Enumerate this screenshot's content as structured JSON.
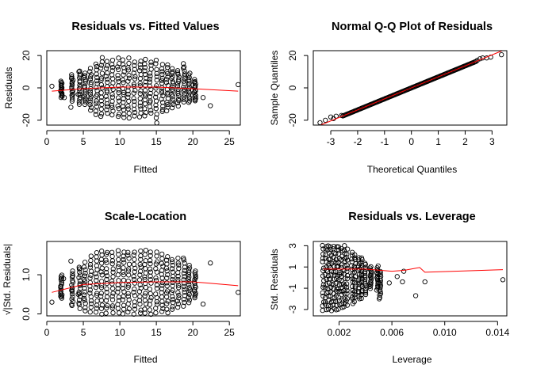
{
  "chart_data": [
    {
      "id": "resfit",
      "type": "scatter",
      "title": "Residuals vs. Fitted Values",
      "xlabel": "Fitted",
      "ylabel": "Residuals",
      "xlim": [
        0,
        26.5
      ],
      "ylim": [
        -23,
        23
      ],
      "xticks": [
        0,
        5,
        10,
        15,
        20,
        25
      ],
      "yticks": [
        -20,
        0,
        20
      ],
      "points": [
        [
          0.7,
          1
        ],
        [
          1.9,
          -2
        ],
        [
          2.4,
          -6
        ],
        [
          3.3,
          -12
        ],
        [
          3.4,
          6
        ],
        [
          4.3,
          -4
        ],
        [
          4.4,
          10
        ],
        [
          21.4,
          -6
        ],
        [
          22.4,
          -11
        ],
        [
          26.2,
          2
        ]
      ],
      "columns": [
        {
          "x": 2.0,
          "ymin": -6,
          "ymax": 4
        },
        {
          "x": 3.5,
          "ymin": -8,
          "ymax": 8
        },
        {
          "x": 4.5,
          "ymin": -10,
          "ymax": 10
        },
        {
          "x": 5.2,
          "ymin": -10,
          "ymax": 9
        },
        {
          "x": 6.0,
          "ymin": -14,
          "ymax": 12
        },
        {
          "x": 6.8,
          "ymin": -16,
          "ymax": 15
        },
        {
          "x": 7.5,
          "ymin": -18,
          "ymax": 19
        },
        {
          "x": 8.2,
          "ymin": -16,
          "ymax": 16
        },
        {
          "x": 9.0,
          "ymin": -17,
          "ymax": 17
        },
        {
          "x": 9.8,
          "ymin": -18,
          "ymax": 18
        },
        {
          "x": 10.5,
          "ymin": -19,
          "ymax": 17
        },
        {
          "x": 11.2,
          "ymin": -18,
          "ymax": 18
        },
        {
          "x": 12.0,
          "ymin": -17,
          "ymax": 16
        },
        {
          "x": 12.8,
          "ymin": -18,
          "ymax": 17
        },
        {
          "x": 13.5,
          "ymin": -17,
          "ymax": 17
        },
        {
          "x": 14.2,
          "ymin": -16,
          "ymax": 16
        },
        {
          "x": 15.0,
          "ymin": -21,
          "ymax": 17
        },
        {
          "x": 15.8,
          "ymin": -15,
          "ymax": 14
        },
        {
          "x": 16.5,
          "ymin": -14,
          "ymax": 14
        },
        {
          "x": 17.2,
          "ymin": -12,
          "ymax": 12
        },
        {
          "x": 18.0,
          "ymin": -11,
          "ymax": 11
        },
        {
          "x": 18.8,
          "ymin": -9,
          "ymax": 15
        },
        {
          "x": 19.5,
          "ymin": -9,
          "ymax": 9
        },
        {
          "x": 20.3,
          "ymin": -8,
          "ymax": 5
        }
      ],
      "smooth": [
        [
          0.7,
          -2
        ],
        [
          5,
          -0.5
        ],
        [
          10,
          0.5
        ],
        [
          15,
          0.5
        ],
        [
          20,
          -0.5
        ],
        [
          26.2,
          -2
        ]
      ]
    },
    {
      "id": "qq",
      "type": "scatter",
      "title": "Normal Q-Q Plot of Residuals",
      "xlabel": "Theoretical Quantiles",
      "ylabel": "Sample Quantiles",
      "xlim": [
        -3.65,
        3.55
      ],
      "ylim": [
        -23,
        23
      ],
      "xticks": [
        -3,
        -2,
        -1,
        0,
        1,
        2,
        3
      ],
      "yticks": [
        -20,
        0,
        20
      ],
      "points": [
        [
          -3.4,
          -21.5
        ],
        [
          -3.2,
          -20
        ],
        [
          -3.0,
          -18
        ],
        [
          -2.9,
          -19
        ],
        [
          -2.8,
          -17.5
        ],
        [
          -2.6,
          -17
        ],
        [
          2.45,
          17
        ],
        [
          2.55,
          18
        ],
        [
          2.65,
          18.5
        ],
        [
          2.8,
          18.5
        ],
        [
          2.95,
          19
        ],
        [
          3.35,
          20.5
        ]
      ],
      "band": {
        "from": -2.55,
        "to": 2.4,
        "slope": 6.8
      },
      "line": {
        "slope": 6.8,
        "intercept": 0
      }
    },
    {
      "id": "scaleloc",
      "type": "scatter",
      "title": "Scale-Location",
      "xlabel": "Fitted",
      "ylabel": "√|Std. Residuals|",
      "xlim": [
        0,
        26.5
      ],
      "ylim": [
        -0.05,
        1.85
      ],
      "xticks": [
        0,
        5,
        10,
        15,
        20,
        25
      ],
      "yticks": [
        0.0,
        1.0
      ],
      "yticklabels": [
        "0.0",
        "1.0"
      ],
      "points": [
        [
          0.7,
          0.3
        ],
        [
          1.9,
          0.45
        ],
        [
          2.3,
          0.9
        ],
        [
          3.3,
          1.35
        ],
        [
          3.4,
          0.6
        ],
        [
          4.3,
          0.5
        ],
        [
          4.5,
          1.15
        ],
        [
          21.4,
          0.25
        ],
        [
          22.4,
          1.3
        ],
        [
          26.2,
          0.55
        ]
      ],
      "columns": [
        {
          "x": 2.0,
          "ymin": 0.4,
          "ymax": 1.0
        },
        {
          "x": 3.5,
          "ymin": 0.2,
          "ymax": 1.1
        },
        {
          "x": 4.5,
          "ymin": 0.15,
          "ymax": 1.2
        },
        {
          "x": 5.2,
          "ymin": 0.1,
          "ymax": 1.3
        },
        {
          "x": 6.0,
          "ymin": 0.05,
          "ymax": 1.45
        },
        {
          "x": 6.8,
          "ymin": 0.05,
          "ymax": 1.55
        },
        {
          "x": 7.5,
          "ymin": 0.02,
          "ymax": 1.6
        },
        {
          "x": 8.2,
          "ymin": 0.02,
          "ymax": 1.6
        },
        {
          "x": 9.0,
          "ymin": 0.02,
          "ymax": 1.6
        },
        {
          "x": 9.8,
          "ymin": 0.02,
          "ymax": 1.6
        },
        {
          "x": 10.5,
          "ymin": 0.02,
          "ymax": 1.6
        },
        {
          "x": 11.2,
          "ymin": 0.02,
          "ymax": 1.6
        },
        {
          "x": 12.0,
          "ymin": 0.02,
          "ymax": 1.6
        },
        {
          "x": 12.8,
          "ymin": 0.02,
          "ymax": 1.6
        },
        {
          "x": 13.5,
          "ymin": 0.02,
          "ymax": 1.6
        },
        {
          "x": 14.2,
          "ymin": 0.02,
          "ymax": 1.6
        },
        {
          "x": 15.0,
          "ymin": 0.02,
          "ymax": 1.55
        },
        {
          "x": 15.8,
          "ymin": 0.05,
          "ymax": 1.5
        },
        {
          "x": 16.5,
          "ymin": 0.05,
          "ymax": 1.45
        },
        {
          "x": 17.2,
          "ymin": 0.1,
          "ymax": 1.4
        },
        {
          "x": 18.0,
          "ymin": 0.15,
          "ymax": 1.4
        },
        {
          "x": 18.8,
          "ymin": 0.2,
          "ymax": 1.45
        },
        {
          "x": 19.5,
          "ymin": 0.3,
          "ymax": 1.25
        },
        {
          "x": 20.3,
          "ymin": 0.4,
          "ymax": 1.1
        }
      ],
      "smooth": [
        [
          0.7,
          0.55
        ],
        [
          5,
          0.75
        ],
        [
          10,
          0.8
        ],
        [
          15,
          0.82
        ],
        [
          20,
          0.82
        ],
        [
          26.2,
          0.72
        ]
      ]
    },
    {
      "id": "resleverage",
      "type": "scatter",
      "title": "Residuals vs. Leverage",
      "xlabel": "Leverage",
      "ylabel": "Std. Residuals",
      "xlim": [
        5e-05,
        0.0147
      ],
      "ylim": [
        -3.6,
        3.4
      ],
      "xticks": [
        0.002,
        0.006,
        0.01,
        0.014
      ],
      "xticklabels": [
        "0.002",
        "0.006",
        "0.010",
        "0.014"
      ],
      "yticks": [
        -3,
        -1,
        1,
        3
      ],
      "yticklabels": [
        "-3",
        "-1",
        "1",
        "3"
      ],
      "points": [
        [
          0.0058,
          -0.5
        ],
        [
          0.0064,
          0.1
        ],
        [
          0.0068,
          -0.4
        ],
        [
          0.0069,
          0.6
        ],
        [
          0.0078,
          -1.7
        ],
        [
          0.0085,
          -0.4
        ],
        [
          0.0144,
          -0.2
        ]
      ],
      "columns": [
        {
          "x": 0.0008,
          "ymin": -3.0,
          "ymax": 3.0
        },
        {
          "x": 0.001,
          "ymin": -3.0,
          "ymax": 3.0
        },
        {
          "x": 0.0012,
          "ymin": -3.0,
          "ymax": 3.0
        },
        {
          "x": 0.0014,
          "ymin": -3.0,
          "ymax": 3.0
        },
        {
          "x": 0.0016,
          "ymin": -3.0,
          "ymax": 3.0
        },
        {
          "x": 0.0018,
          "ymin": -3.0,
          "ymax": 3.0
        },
        {
          "x": 0.002,
          "ymin": -3.0,
          "ymax": 3.0
        },
        {
          "x": 0.0022,
          "ymin": -2.8,
          "ymax": 2.8
        },
        {
          "x": 0.0024,
          "ymin": -2.8,
          "ymax": 3.0
        },
        {
          "x": 0.0026,
          "ymin": -2.6,
          "ymax": 2.6
        },
        {
          "x": 0.003,
          "ymin": -2.4,
          "ymax": 2.4
        },
        {
          "x": 0.0032,
          "ymin": -2.2,
          "ymax": 2.2
        },
        {
          "x": 0.0035,
          "ymin": -2.0,
          "ymax": 1.9
        },
        {
          "x": 0.0037,
          "ymin": -1.9,
          "ymax": 1.9
        },
        {
          "x": 0.004,
          "ymin": -1.6,
          "ymax": 1.4
        },
        {
          "x": 0.0044,
          "ymin": -1.0,
          "ymax": 1.0
        },
        {
          "x": 0.0049,
          "ymin": -1.2,
          "ymax": 1.1
        },
        {
          "x": 0.0051,
          "ymin": -2.0,
          "ymax": 0.6
        }
      ],
      "smooth": [
        [
          0.0008,
          0.8
        ],
        [
          0.004,
          0.8
        ],
        [
          0.005,
          0.7
        ],
        [
          0.006,
          0.6
        ],
        [
          0.007,
          0.7
        ],
        [
          0.0081,
          0.95
        ],
        [
          0.0085,
          0.5
        ],
        [
          0.0144,
          0.75
        ]
      ]
    }
  ]
}
